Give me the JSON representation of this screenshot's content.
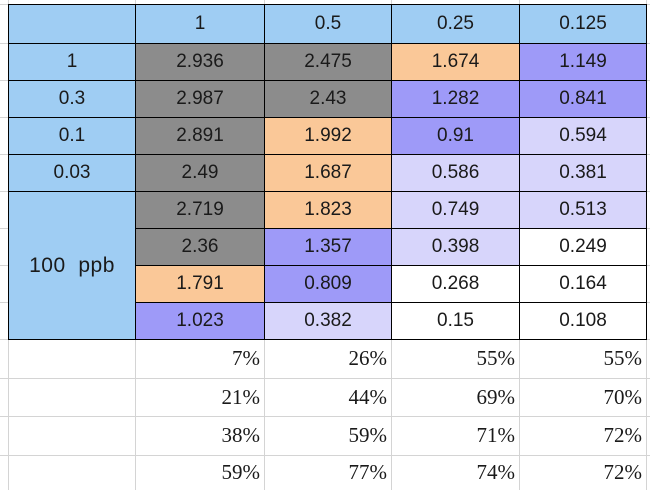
{
  "colors": {
    "blue": "#9fcdf3",
    "grey": "#8c8c8c",
    "orange": "#fac898",
    "purple": "#9e9af8",
    "lavender": "#d7d5fb",
    "white": "#ffffff"
  },
  "header": [
    "1",
    "0.5",
    "0.25",
    "0.125"
  ],
  "row_labels": [
    "1",
    "0.3",
    "0.1",
    "0.03"
  ],
  "merged_label": "100  ppb",
  "rows": [
    {
      "values": [
        "2.936",
        "2.475",
        "1.674",
        "1.149"
      ],
      "colors": [
        "grey",
        "grey",
        "orange",
        "purple"
      ]
    },
    {
      "values": [
        "2.987",
        "2.43",
        "1.282",
        "0.841"
      ],
      "colors": [
        "grey",
        "grey",
        "purple",
        "purple"
      ]
    },
    {
      "values": [
        "2.891",
        "1.992",
        "0.91",
        "0.594"
      ],
      "colors": [
        "grey",
        "orange",
        "purple",
        "lavender"
      ]
    },
    {
      "values": [
        "2.49",
        "1.687",
        "0.586",
        "0.381"
      ],
      "colors": [
        "grey",
        "orange",
        "lavender",
        "lavender"
      ]
    },
    {
      "values": [
        "2.719",
        "1.823",
        "0.749",
        "0.513"
      ],
      "colors": [
        "grey",
        "orange",
        "lavender",
        "lavender"
      ]
    },
    {
      "values": [
        "2.36",
        "1.357",
        "0.398",
        "0.249"
      ],
      "colors": [
        "grey",
        "purple",
        "lavender",
        "white"
      ]
    },
    {
      "values": [
        "1.791",
        "0.809",
        "0.268",
        "0.164"
      ],
      "colors": [
        "orange",
        "purple",
        "white",
        "white"
      ]
    },
    {
      "values": [
        "1.023",
        "0.382",
        "0.15",
        "0.108"
      ],
      "colors": [
        "purple",
        "lavender",
        "white",
        "white"
      ]
    }
  ],
  "percent_rows": [
    [
      "7%",
      "26%",
      "55%",
      "55%"
    ],
    [
      "21%",
      "44%",
      "69%",
      "70%"
    ],
    [
      "38%",
      "59%",
      "71%",
      "72%"
    ],
    [
      "59%",
      "77%",
      "74%",
      "72%"
    ]
  ]
}
